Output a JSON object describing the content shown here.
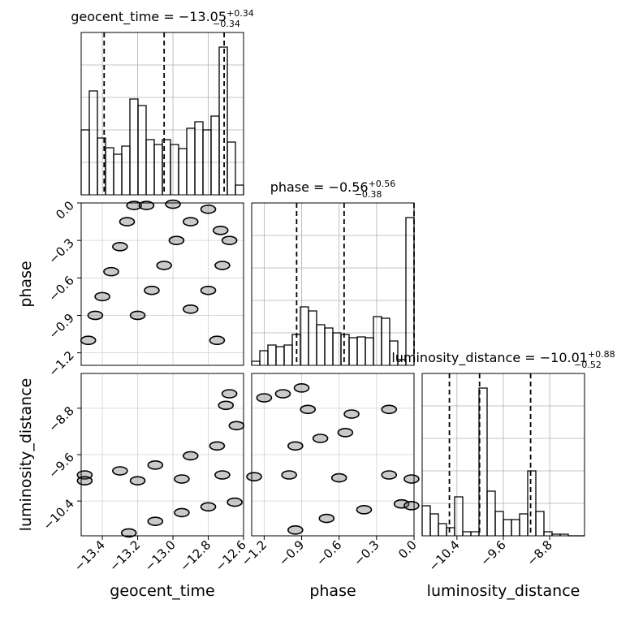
{
  "chart_data": {
    "type": "corner",
    "grid": true,
    "color": "#000000",
    "density_color": "#666666",
    "parameters": [
      {
        "name": "geocent_time",
        "title": {
          "label": "geocent_time = −13.05",
          "plus": "+0.34",
          "minus": "−0.34"
        },
        "xlim": [
          -13.52,
          -12.6
        ],
        "ticks": [
          {
            "value": -13.4,
            "label": "−13.4"
          },
          {
            "value": -13.2,
            "label": "−13.2"
          },
          {
            "value": -13.0,
            "label": "−13.0"
          },
          {
            "value": -12.8,
            "label": "−12.8"
          },
          {
            "value": -12.6,
            "label": "−12.6"
          }
        ],
        "quantiles": [
          -13.39,
          -13.05,
          -12.71
        ],
        "bins": [
          -13.52,
          -13.474,
          -13.428,
          -13.382,
          -13.336,
          -13.29,
          -13.244,
          -13.198,
          -13.152,
          -13.106,
          -13.06,
          -13.014,
          -12.968,
          -12.922,
          -12.876,
          -12.83,
          -12.784,
          -12.738,
          -12.692,
          -12.646,
          -12.6
        ],
        "counts": [
          80,
          128,
          70,
          58,
          50,
          60,
          118,
          110,
          68,
          62,
          68,
          62,
          57,
          82,
          90,
          80,
          97,
          182,
          65,
          12
        ],
        "hist_ylim": [
          0,
          200
        ]
      },
      {
        "name": "phase",
        "title": {
          "label": "phase = −0.56",
          "plus": "+0.56",
          "minus": "−0.38"
        },
        "xlim": [
          -1.3,
          0
        ],
        "ticks": [
          {
            "value": -1.2,
            "label": "−1.2"
          },
          {
            "value": -0.9,
            "label": "−0.9"
          },
          {
            "value": -0.6,
            "label": "−0.6"
          },
          {
            "value": -0.3,
            "label": "−0.3"
          },
          {
            "value": 0,
            "label": "0.0"
          }
        ],
        "quantiles": [
          -0.94,
          -0.56,
          0.0
        ],
        "bins": [
          -1.3,
          -1.235,
          -1.17,
          -1.105,
          -1.04,
          -0.975,
          -0.91,
          -0.845,
          -0.78,
          -0.715,
          -0.65,
          -0.585,
          -0.52,
          -0.455,
          -0.39,
          -0.325,
          -0.26,
          -0.195,
          -0.13,
          -0.065,
          0
        ],
        "counts": [
          5,
          18,
          25,
          23,
          25,
          38,
          72,
          67,
          50,
          46,
          40,
          38,
          34,
          35,
          34,
          60,
          58,
          30,
          7,
          182
        ],
        "hist_ylim": [
          0,
          200
        ]
      },
      {
        "name": "luminosity_distance",
        "title": {
          "label": "luminosity_distance = −10.01",
          "plus": "+0.88",
          "minus": "−0.52"
        },
        "xlim": [
          -11.0,
          -8.2
        ],
        "ticks": [
          {
            "value": -10.4,
            "label": "−10.4"
          },
          {
            "value": -9.6,
            "label": "−9.6"
          },
          {
            "value": -8.8,
            "label": "−8.8"
          }
        ],
        "quantiles": [
          -10.53,
          -10.01,
          -9.13
        ],
        "bins": [
          -11,
          -10.86,
          -10.72,
          -10.58,
          -10.44,
          -10.3,
          -10.16,
          -10.02,
          -9.88,
          -9.74,
          -9.6,
          -9.46,
          -9.32,
          -9.18,
          -9.04,
          -8.9,
          -8.76,
          -8.62,
          -8.48,
          -8.34,
          -8.2
        ],
        "counts": [
          37,
          27,
          15,
          10,
          48,
          5,
          5,
          182,
          55,
          30,
          20,
          20,
          27,
          80,
          30,
          5,
          2,
          2,
          0,
          0
        ],
        "hist_ylim": [
          0,
          200
        ]
      }
    ],
    "pairs": [
      {
        "x": [
          -13.48,
          -13.44,
          -13.4,
          -13.35,
          -13.3,
          -13.26,
          -13.22,
          -13.2,
          -13.12,
          -13.05,
          -12.98,
          -12.9,
          -12.8,
          -13.15,
          -13.0,
          -12.9,
          -12.8,
          -12.72,
          -12.68,
          -12.75,
          -12.73
        ],
        "y": [
          -1.1,
          -0.9,
          -0.75,
          -0.55,
          -0.35,
          -0.15,
          -0.02,
          -0.9,
          -0.7,
          -0.5,
          -0.3,
          -0.15,
          -0.05,
          -0.02,
          -0.01,
          -0.85,
          -0.7,
          -0.5,
          -0.3,
          -1.1,
          -0.22
        ]
      },
      {
        "x": [
          -13.5,
          -13.3,
          -13.1,
          -12.9,
          -12.75,
          -12.64,
          -12.7,
          -12.68,
          -13.5,
          -13.2,
          -12.95,
          -12.72,
          -13.25,
          -13.1,
          -12.95,
          -12.8,
          -12.65
        ],
        "y": [
          -9.95,
          -9.88,
          -9.78,
          -9.62,
          -9.45,
          -9.1,
          -8.75,
          -8.55,
          -10.05,
          -10.05,
          -10.02,
          -9.95,
          -10.95,
          -10.75,
          -10.6,
          -10.5,
          -10.42
        ]
      },
      {
        "x": [
          -1.28,
          -1.0,
          -0.6,
          -0.2,
          -0.02,
          -1.2,
          -1.05,
          -0.9,
          -0.85,
          -0.5,
          -0.2,
          -0.95,
          -0.75,
          -0.55,
          -0.95,
          -0.7,
          -0.4,
          -0.1,
          -0.02
        ],
        "y": [
          -9.98,
          -9.95,
          -10.0,
          -9.95,
          -10.02,
          -8.62,
          -8.55,
          -8.45,
          -8.82,
          -8.9,
          -8.82,
          -9.45,
          -9.32,
          -9.22,
          -10.9,
          -10.7,
          -10.55,
          -10.45,
          -10.48
        ]
      }
    ]
  }
}
